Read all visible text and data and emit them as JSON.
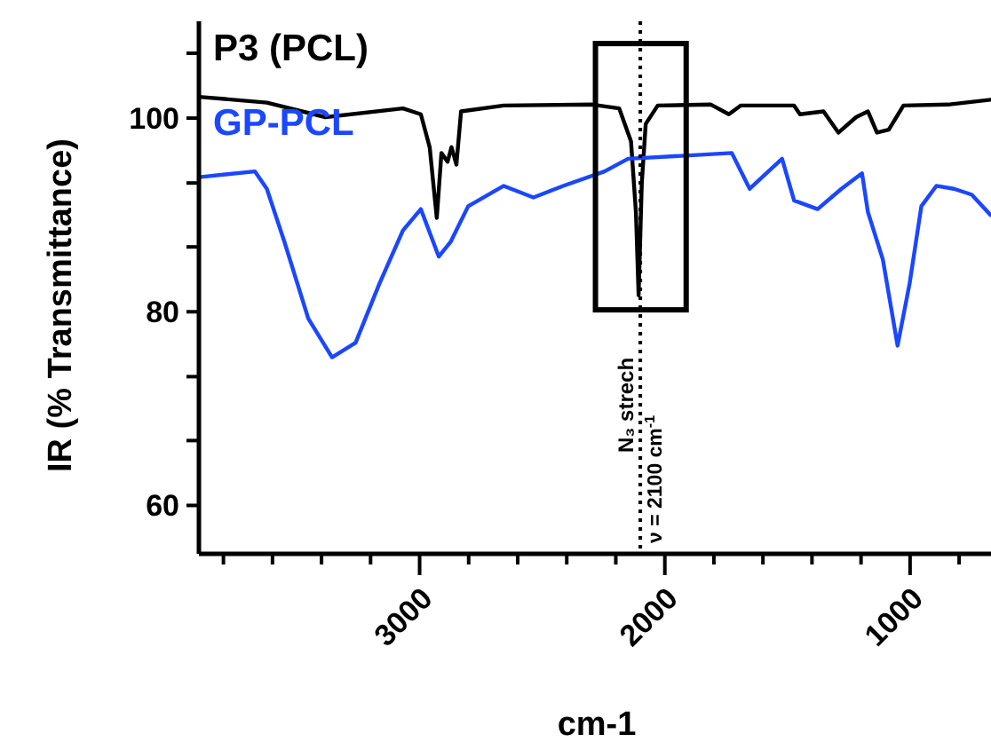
{
  "chart_data": {
    "type": "line",
    "xlabel": "cm-1",
    "ylabel": "IR (% Transmittance)",
    "xlim": [
      3900,
      670
    ],
    "ylim": [
      55,
      110
    ],
    "xticks": [
      {
        "value": 3800,
        "label": null
      },
      {
        "value": 3600,
        "label": null
      },
      {
        "value": 3400,
        "label": null
      },
      {
        "value": 3200,
        "label": null
      },
      3000,
      {
        "value": 2800,
        "label": null
      },
      {
        "value": 2600,
        "label": null
      },
      {
        "value": 2400,
        "label": null
      },
      {
        "value": 2200,
        "label": null
      },
      2000,
      {
        "value": 1800,
        "label": null
      },
      {
        "value": 1600,
        "label": null
      },
      {
        "value": 1400,
        "label": null
      },
      {
        "value": 1200,
        "label": null
      },
      1000,
      {
        "value": 800,
        "label": null
      }
    ],
    "yticks": [
      60,
      {
        "value": 66.7,
        "label": null
      },
      {
        "value": 73.3,
        "label": null
      },
      80,
      {
        "value": 86.7,
        "label": null
      },
      {
        "value": 93.3,
        "label": null
      },
      100,
      {
        "value": 106.7,
        "label": null
      }
    ],
    "grid": false,
    "marker": "none",
    "line_style": "solid",
    "series": [
      {
        "name": "P3 (PCL)",
        "color": "#000000",
        "x": [
          3900,
          3623,
          3384,
          3068,
          2995,
          2959,
          2930,
          2911,
          2886,
          2870,
          2850,
          2831,
          2657,
          2295,
          2186,
          2138,
          2118,
          2107,
          2094,
          2078,
          2029,
          1812,
          1739,
          1691,
          1473,
          1449,
          1353,
          1292,
          1220,
          1172,
          1135,
          1087,
          1027,
          846,
          672
        ],
        "values": [
          102.2,
          101.6,
          100.1,
          101,
          100.4,
          97,
          89.7,
          96.4,
          95.5,
          97,
          95.2,
          100.7,
          101.3,
          101.4,
          101,
          97.6,
          90.3,
          81.7,
          93.3,
          99.4,
          101.3,
          101.4,
          100.4,
          101.3,
          101.3,
          100.4,
          100.7,
          98.5,
          100.1,
          100.7,
          98.5,
          98.8,
          101.3,
          101.4,
          101.9
        ]
      },
      {
        "name": "GP-PCL",
        "color": "#1a47ff",
        "x": [
          3900,
          3672,
          3623,
          3551,
          3454,
          3357,
          3261,
          3164,
          3068,
          2995,
          2922,
          2874,
          2802,
          2657,
          2536,
          2415,
          2246,
          2150,
          1933,
          1727,
          1654,
          1522,
          1473,
          1377,
          1280,
          1196,
          1172,
          1111,
          1051,
          1002,
          954,
          893,
          821,
          749,
          672
        ],
        "values": [
          93.9,
          94.5,
          92.7,
          87.2,
          79.3,
          75.3,
          76.8,
          82.9,
          88.4,
          90.6,
          85.7,
          87.2,
          90.9,
          93,
          91.8,
          93,
          94.5,
          95.8,
          96.1,
          96.4,
          92.7,
          95.8,
          91.5,
          90.6,
          92.7,
          94.3,
          90.3,
          85.4,
          76.5,
          82.9,
          90.9,
          93,
          92.7,
          92.1,
          90
        ]
      }
    ],
    "ref_lines": [
      {
        "axis": "x",
        "value": 2100,
        "label": "ν = 2100 cm$^{-1}$",
        "line_style": "dotted",
        "color": "#000000"
      }
    ],
    "annotations": [
      "N₃ strech"
    ]
  }
}
